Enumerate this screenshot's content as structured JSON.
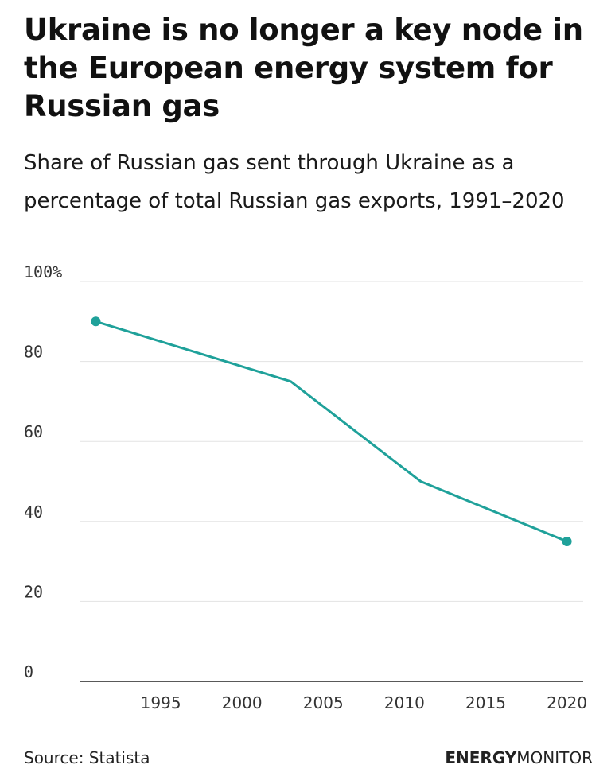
{
  "title": "Ukraine is no longer a key node in the European energy system for Russian gas",
  "subtitle": "Share of Russian gas sent through Ukraine as a percentage of total Russian gas exports, 1991–2020",
  "source": "Source: Statista",
  "brand": {
    "bold": "ENERGY",
    "regular": "MONITOR"
  },
  "colors": {
    "line": "#1fa19a",
    "grid": "#e3e3e3",
    "axis": "#222222"
  },
  "chart_data": {
    "type": "line",
    "x": [
      1991,
      2003,
      2011,
      2020
    ],
    "series": [
      {
        "values": [
          90,
          75,
          50,
          35
        ]
      }
    ],
    "xlim": [
      1990,
      2021
    ],
    "ylim": [
      0,
      100
    ],
    "yticks": [
      0,
      20,
      40,
      60,
      80,
      100
    ],
    "ytick_labels": [
      "0",
      "20",
      "40",
      "60",
      "80",
      "100%"
    ],
    "xticks": [
      1995,
      2000,
      2005,
      2010,
      2015,
      2020
    ],
    "xtick_labels": [
      "1995",
      "2000",
      "2005",
      "2010",
      "2015",
      "2020"
    ],
    "endpoint_markers": true,
    "grid": "horizontal",
    "xlabel": "",
    "ylabel": ""
  }
}
